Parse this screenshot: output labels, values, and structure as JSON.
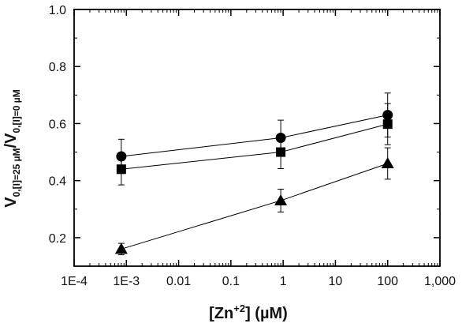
{
  "chart_data": {
    "type": "scatter",
    "title": "",
    "x_scale": "log",
    "xlim": [
      0.0001,
      1000
    ],
    "ylim": [
      0.1,
      1.0
    ],
    "grid": false,
    "legend": "none",
    "x_tick_labels": [
      "1E-4",
      "1E-3",
      "0.01",
      "0.1",
      "1",
      "10",
      "100",
      "1,000"
    ],
    "y_tick_labels": [
      "0.2",
      "0.4",
      "0.6",
      "0.8",
      "1.0"
    ],
    "xlabel": {
      "main": "[Zn",
      "sup": "+2",
      "rest": "] (µM)"
    },
    "ylabel": {
      "num_main": "V",
      "num_sub": "0,[I]=25 µM",
      "slash": "/",
      "den_main": "V",
      "den_sub": "0,[I]=0 µM"
    },
    "series": [
      {
        "marker": "circle",
        "x": [
          0.0008,
          0.9,
          100
        ],
        "y": [
          0.485,
          0.55,
          0.63
        ],
        "err": [
          0.06,
          0.062,
          0.077
        ]
      },
      {
        "marker": "square",
        "x": [
          0.0008,
          0.9,
          100
        ],
        "y": [
          0.44,
          0.5,
          0.598
        ],
        "err": [
          0.055,
          0.058,
          0.072
        ]
      },
      {
        "marker": "triangle",
        "x": [
          0.0008,
          0.9,
          100
        ],
        "y": [
          0.16,
          0.33,
          0.46
        ],
        "err": [
          0.02,
          0.04,
          0.055
        ]
      }
    ]
  }
}
